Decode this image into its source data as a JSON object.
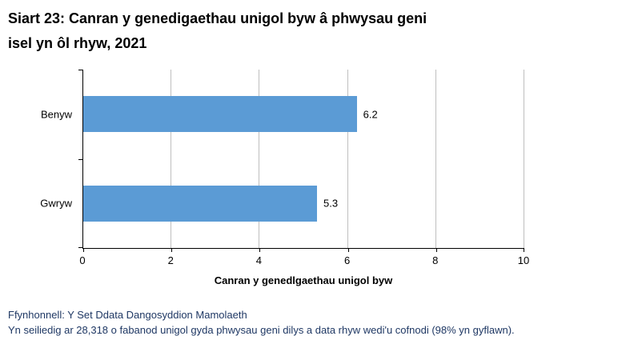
{
  "title_lines": [
    "Siart 23: Canran y genedigaethau unigol byw â phwysau geni",
    "isel yn ôl rhyw, 2021"
  ],
  "chart_data": {
    "type": "bar",
    "orientation": "horizontal",
    "title": "Siart 23: Canran y genedigaethau unigol byw â phwysau geni isel yn ôl rhyw, 2021",
    "categories": [
      "Benyw",
      "Gwryw"
    ],
    "values": [
      6.2,
      5.3
    ],
    "data_labels": [
      "6.2",
      "5.3"
    ],
    "xlabel": "Canran y genedlgaethau unigol byw",
    "ylabel": "",
    "xlim": [
      0,
      10
    ],
    "xticks": [
      0,
      2,
      4,
      6,
      8,
      10
    ],
    "grid": true,
    "legend": false,
    "bar_color": "#5B9BD5",
    "gridline_color": "#BFBFBF",
    "axis_color": "#000000"
  },
  "footer": {
    "source_line": "Ffynhonnell: Y Set Ddata Dangosyddion Mamolaeth",
    "note_line": "Yn seiliedig ar 28,318 o fabanod unigol gyda phwysau geni dilys a data rhyw wedi'u cofnodi (98% yn gyflawn).",
    "text_color": "#1F3864"
  }
}
